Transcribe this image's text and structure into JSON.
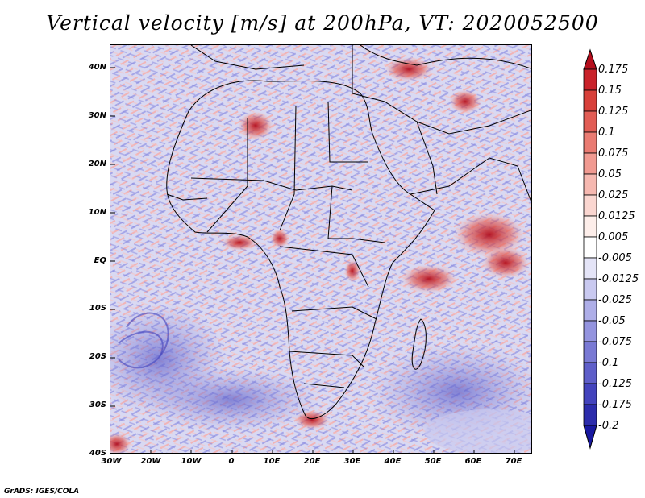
{
  "title": "Vertical velocity [m/s] at 200hPa, VT: 2020052500",
  "axes": {
    "lat_labels": [
      "40N",
      "30N",
      "20N",
      "10N",
      "EQ",
      "10S",
      "20S",
      "30S",
      "40S"
    ],
    "lon_labels": [
      "30W",
      "20W",
      "10W",
      "0",
      "10E",
      "20E",
      "30E",
      "40E",
      "50E",
      "60E",
      "70E"
    ]
  },
  "colorbar": {
    "levels": [
      "0.175",
      "0.15",
      "0.125",
      "0.1",
      "0.075",
      "0.05",
      "0.025",
      "0.0125",
      "0.005",
      "-0.005",
      "-0.0125",
      "-0.025",
      "-0.05",
      "-0.075",
      "-0.1",
      "-0.125",
      "-0.175",
      "-0.2"
    ],
    "colors": [
      "#b40e1c",
      "#c9222a",
      "#d8403a",
      "#e25d55",
      "#ea7b72",
      "#f19a91",
      "#f6b8b0",
      "#fad6d0",
      "#fdeeea",
      "#ffffff",
      "#e4e4f7",
      "#c9c9f0",
      "#aeaee8",
      "#9494df",
      "#7979d4",
      "#5e5ec9",
      "#4343bd",
      "#2c2cac",
      "#1818a0"
    ]
  },
  "credit": "GrADS: IGES/COLA"
}
